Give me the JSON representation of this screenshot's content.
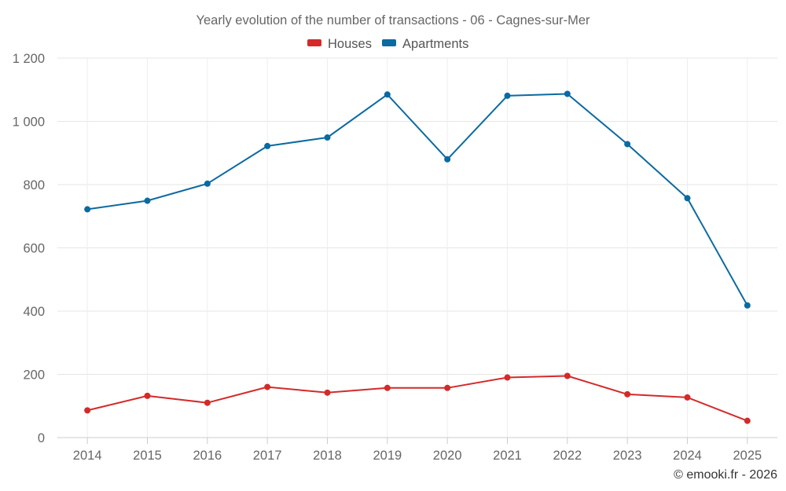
{
  "chart_data": {
    "type": "line",
    "title": "Yearly evolution of the number of transactions - 06 - Cagnes-sur-Mer",
    "categories": [
      "2014",
      "2015",
      "2016",
      "2017",
      "2018",
      "2019",
      "2020",
      "2021",
      "2022",
      "2023",
      "2024",
      "2025"
    ],
    "series": [
      {
        "name": "Houses",
        "color": "#d42a2a",
        "values": [
          86,
          132,
          110,
          160,
          142,
          157,
          157,
          190,
          195,
          137,
          127,
          53
        ]
      },
      {
        "name": "Apartments",
        "color": "#0b6aa0",
        "values": [
          722,
          749,
          803,
          922,
          949,
          1085,
          880,
          1081,
          1087,
          928,
          757,
          418
        ]
      }
    ],
    "ylim": [
      0,
      1200
    ],
    "yticks": [
      0,
      200,
      400,
      600,
      800,
      1000,
      1200
    ],
    "ytick_labels": [
      "0",
      "200",
      "400",
      "600",
      "800",
      "1 000",
      "1 200"
    ],
    "xlabel": "",
    "ylabel": "",
    "grid": true,
    "legend": "top-center",
    "credit": "© emooki.fr - 2026"
  }
}
